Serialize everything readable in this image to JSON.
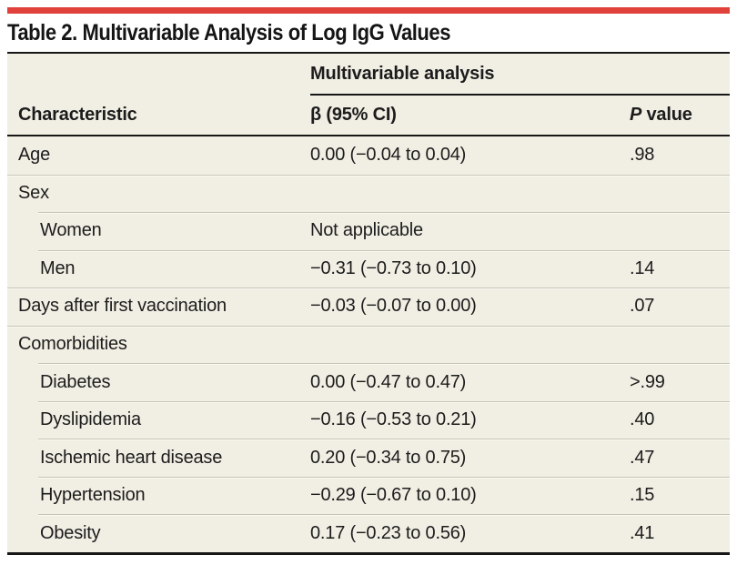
{
  "title": "Table 2. Multivariable Analysis of Log IgG Values",
  "colors": {
    "accent": "#e0413a",
    "bg": "#f1efe4",
    "rule": "#161616",
    "sep": "#c7c4b6",
    "highlight": "#fbfaf2",
    "text": "#1c1c1c"
  },
  "header": {
    "spanner": "Multivariable analysis",
    "characteristic": "Characteristic",
    "beta": "β (95% CI)",
    "p_italic": "P",
    "p_rest": " value"
  },
  "table": {
    "rows": [
      {
        "label": "Age",
        "beta": "0.00 (−0.04 to 0.04)",
        "p": ".98",
        "indent": false,
        "separator": "none"
      },
      {
        "label": "Sex",
        "beta": "",
        "p": "",
        "indent": false,
        "separator": "full"
      },
      {
        "label": "Women",
        "beta": "Not applicable",
        "p": "",
        "indent": true,
        "separator": "indent"
      },
      {
        "label": "Men",
        "beta": "−0.31 (−0.73 to 0.10)",
        "p": ".14",
        "indent": true,
        "separator": "indent"
      },
      {
        "label": "Days after first vaccination",
        "beta": "−0.03 (−0.07 to 0.00)",
        "p": ".07",
        "indent": false,
        "separator": "full"
      },
      {
        "label": "Comorbidities",
        "beta": "",
        "p": "",
        "indent": false,
        "separator": "full"
      },
      {
        "label": "Diabetes",
        "beta": "0.00 (−0.47 to 0.47)",
        "p": ">.99",
        "indent": true,
        "separator": "indent"
      },
      {
        "label": "Dyslipidemia",
        "beta": "−0.16 (−0.53 to 0.21)",
        "p": ".40",
        "indent": true,
        "separator": "indent"
      },
      {
        "label": "Ischemic heart disease",
        "beta": "0.20 (−0.34 to 0.75)",
        "p": ".47",
        "indent": true,
        "separator": "indent"
      },
      {
        "label": "Hypertension",
        "beta": "−0.29 (−0.67 to 0.10)",
        "p": ".15",
        "indent": true,
        "separator": "indent"
      },
      {
        "label": "Obesity",
        "beta": "0.17 (−0.23 to 0.56)",
        "p": ".41",
        "indent": true,
        "separator": "indent"
      }
    ]
  },
  "chart_data": {
    "type": "table",
    "title": "Table 2. Multivariable Analysis of Log IgG Values",
    "columns": [
      "Characteristic",
      "β (95% CI)",
      "P value"
    ],
    "rows": [
      [
        "Age",
        "0.00 (−0.04 to 0.04)",
        ".98"
      ],
      [
        "Sex",
        "",
        ""
      ],
      [
        "Women",
        "Not applicable",
        ""
      ],
      [
        "Men",
        "−0.31 (−0.73 to 0.10)",
        ".14"
      ],
      [
        "Days after first vaccination",
        "−0.03 (−0.07 to 0.00)",
        ".07"
      ],
      [
        "Comorbidities",
        "",
        ""
      ],
      [
        "Diabetes",
        "0.00 (−0.47 to 0.47)",
        ">.99"
      ],
      [
        "Dyslipidemia",
        "−0.16 (−0.53 to 0.21)",
        ".40"
      ],
      [
        "Ischemic heart disease",
        "0.20 (−0.34 to 0.75)",
        ".47"
      ],
      [
        "Hypertension",
        "−0.29 (−0.67 to 0.10)",
        ".15"
      ],
      [
        "Obesity",
        "0.17 (−0.23 to 0.56)",
        ".41"
      ]
    ]
  }
}
